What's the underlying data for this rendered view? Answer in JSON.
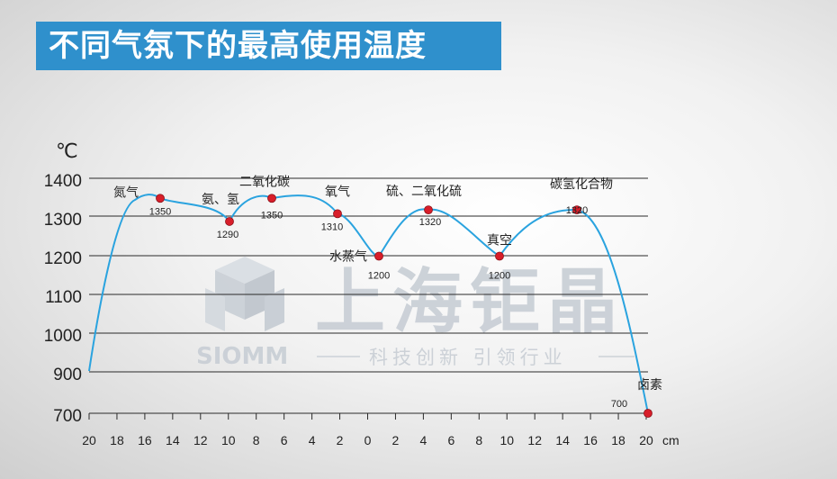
{
  "page": {
    "title": "不同气氛下的最高使用温度"
  },
  "watermark": {
    "brand": "上海钜晶",
    "logo_text": "SIOMM",
    "slogan": "科技创新  引领行业"
  },
  "colors": {
    "title_bg": "#2f90cc",
    "curve": "#2aa3df",
    "point": "#d81e2a"
  },
  "chart_data": {
    "type": "line",
    "title": "不同气氛下的最高使用温度",
    "unit_y": "℃",
    "unit_x": "cm",
    "grid": true,
    "ylim": [
      700,
      1400
    ],
    "yticks": [
      700,
      900,
      1000,
      1100,
      1200,
      1300,
      1400
    ],
    "xtick_labels": [
      "20",
      "18",
      "16",
      "14",
      "12",
      "10",
      "8",
      "6",
      "4",
      "2",
      "0",
      "2",
      "4",
      "6",
      "8",
      "10",
      "12",
      "14",
      "16",
      "18",
      "20"
    ],
    "points": [
      {
        "label": "氮气",
        "value": 1350
      },
      {
        "label": "氨、氢",
        "value": 1290
      },
      {
        "label": "二氧化碳",
        "value": 1350
      },
      {
        "label": "氧气",
        "value": 1310
      },
      {
        "label": "水蒸气",
        "value": 1200
      },
      {
        "label": "硫、二氧化硫",
        "value": 1320
      },
      {
        "label": "真空",
        "value": 1200
      },
      {
        "label": "碳氢化合物",
        "value": 1320
      },
      {
        "label": "卤素",
        "value": 700
      }
    ]
  }
}
